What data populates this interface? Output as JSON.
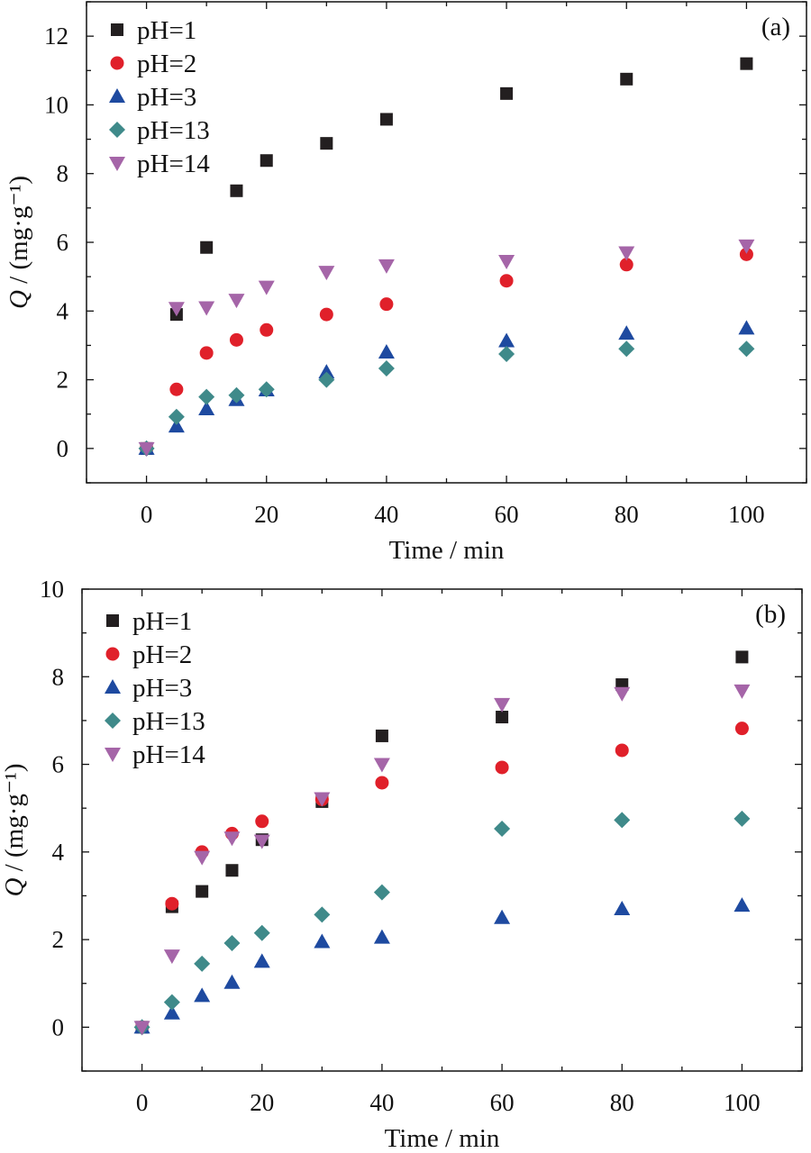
{
  "chart_data": [
    {
      "type": "scatter",
      "panel_label": "(a)",
      "xlabel": "Time / min",
      "ylabel": "Q / (mg·g⁻¹)",
      "xlim": [
        -10,
        110
      ],
      "ylim": [
        -1,
        13
      ],
      "xticks": [
        0,
        20,
        40,
        60,
        80,
        100
      ],
      "yticks": [
        0,
        2,
        4,
        6,
        8,
        10,
        12
      ],
      "legend_position": "top-left",
      "series": [
        {
          "name": "pH=1",
          "marker": "square",
          "color": "#231f20",
          "x": [
            0,
            5,
            10,
            15,
            20,
            30,
            40,
            60,
            80,
            100
          ],
          "y": [
            0,
            3.9,
            5.85,
            7.5,
            8.38,
            8.88,
            9.58,
            10.33,
            10.75,
            11.2
          ]
        },
        {
          "name": "pH=2",
          "marker": "circle",
          "color": "#e0202a",
          "x": [
            0,
            5,
            10,
            15,
            20,
            30,
            40,
            60,
            80,
            100
          ],
          "y": [
            0,
            1.72,
            2.78,
            3.16,
            3.45,
            3.9,
            4.2,
            4.88,
            5.35,
            5.65
          ]
        },
        {
          "name": "pH=3",
          "marker": "triangle-up",
          "color": "#1e4aa0",
          "x": [
            0,
            5,
            10,
            15,
            20,
            30,
            40,
            60,
            80,
            100
          ],
          "y": [
            0,
            0.65,
            1.15,
            1.42,
            1.7,
            2.22,
            2.8,
            3.13,
            3.35,
            3.5
          ]
        },
        {
          "name": "pH=13",
          "marker": "diamond",
          "color": "#3f8a8a",
          "x": [
            0,
            5,
            10,
            15,
            20,
            30,
            40,
            60,
            80,
            100
          ],
          "y": [
            0,
            0.92,
            1.5,
            1.55,
            1.72,
            2.0,
            2.33,
            2.75,
            2.9,
            2.9
          ]
        },
        {
          "name": "pH=14",
          "marker": "triangle-down",
          "color": "#a565a8",
          "x": [
            0,
            5,
            10,
            15,
            20,
            30,
            40,
            60,
            80,
            100
          ],
          "y": [
            0,
            4.08,
            4.1,
            4.32,
            4.7,
            5.13,
            5.32,
            5.45,
            5.7,
            5.9
          ]
        }
      ]
    },
    {
      "type": "scatter",
      "panel_label": "(b)",
      "xlabel": "Time / min",
      "ylabel": "Q / (mg·g⁻¹)",
      "xlim": [
        -10,
        110
      ],
      "ylim": [
        -1,
        10
      ],
      "xticks": [
        0,
        20,
        40,
        60,
        80,
        100
      ],
      "yticks": [
        0,
        2,
        4,
        6,
        8,
        10
      ],
      "legend_position": "top-left",
      "series": [
        {
          "name": "pH=1",
          "marker": "square",
          "color": "#231f20",
          "x": [
            0,
            5,
            10,
            15,
            20,
            30,
            40,
            60,
            80,
            100
          ],
          "y": [
            0,
            2.75,
            3.1,
            3.58,
            4.28,
            5.15,
            6.65,
            7.08,
            7.82,
            8.45
          ]
        },
        {
          "name": "pH=2",
          "marker": "circle",
          "color": "#e0202a",
          "x": [
            0,
            5,
            10,
            15,
            20,
            30,
            40,
            60,
            80,
            100
          ],
          "y": [
            0,
            2.82,
            4.0,
            4.42,
            4.7,
            5.2,
            5.58,
            5.93,
            6.32,
            6.82
          ]
        },
        {
          "name": "pH=3",
          "marker": "triangle-up",
          "color": "#1e4aa0",
          "x": [
            0,
            5,
            10,
            15,
            20,
            30,
            40,
            60,
            80,
            100
          ],
          "y": [
            0,
            0.32,
            0.72,
            1.02,
            1.5,
            1.95,
            2.05,
            2.5,
            2.7,
            2.78
          ]
        },
        {
          "name": "pH=13",
          "marker": "diamond",
          "color": "#3f8a8a",
          "x": [
            0,
            5,
            10,
            15,
            20,
            30,
            40,
            60,
            80,
            100
          ],
          "y": [
            0,
            0.57,
            1.45,
            1.92,
            2.15,
            2.57,
            3.08,
            4.53,
            4.73,
            4.76
          ]
        },
        {
          "name": "pH=14",
          "marker": "triangle-down",
          "color": "#a565a8",
          "x": [
            0,
            5,
            10,
            15,
            20,
            30,
            40,
            60,
            80,
            100
          ],
          "y": [
            0,
            1.63,
            3.88,
            4.32,
            4.25,
            5.22,
            6.0,
            7.37,
            7.62,
            7.68
          ]
        }
      ]
    }
  ]
}
